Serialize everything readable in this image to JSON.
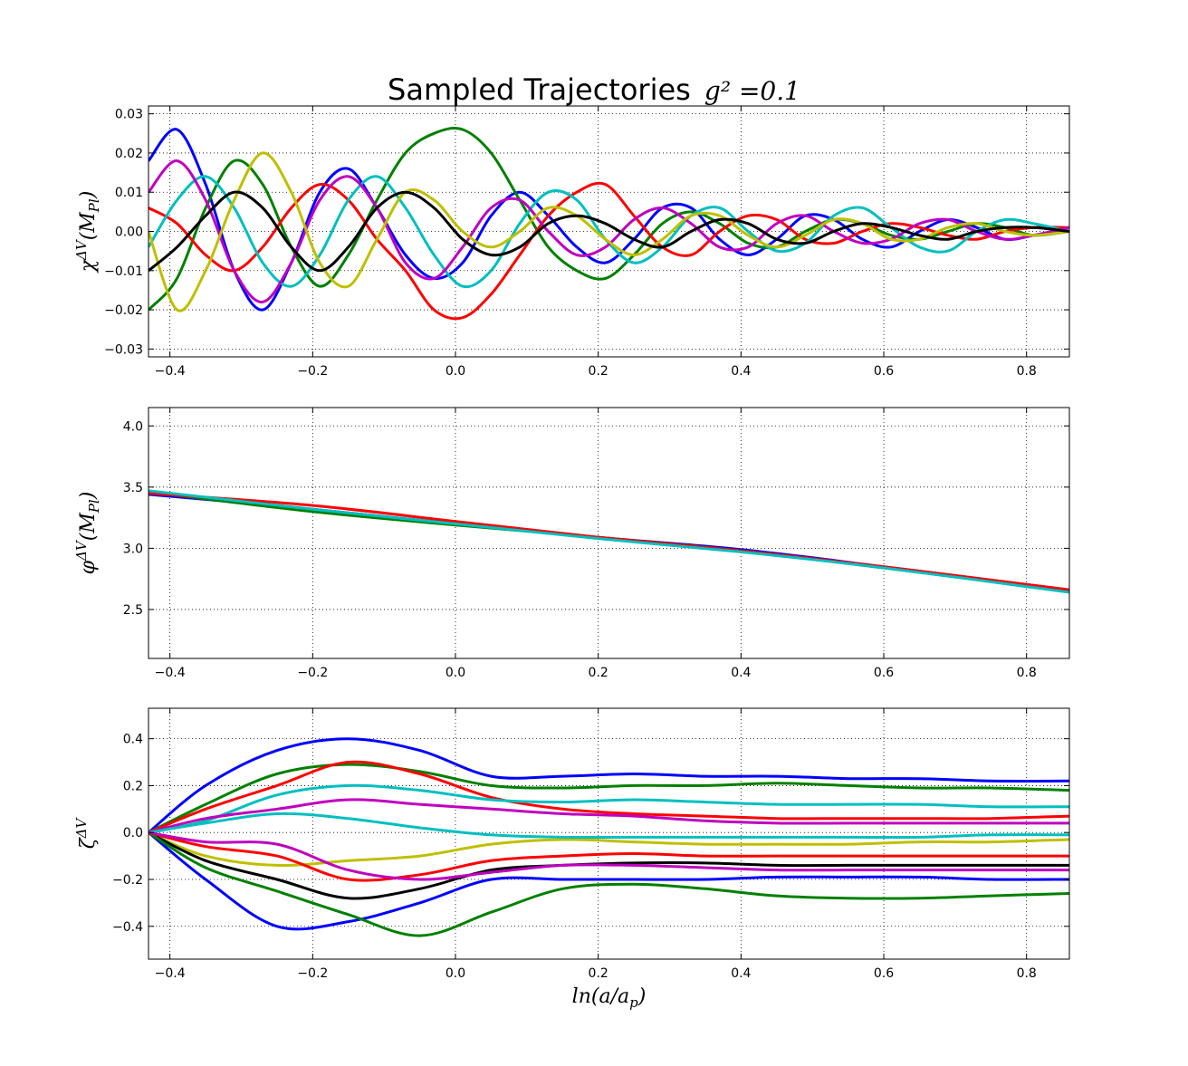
{
  "title": {
    "text": "Sampled Trajectories",
    "math": "g² =0.1"
  },
  "colors": [
    "#0000ff",
    "#008000",
    "#ff0000",
    "#00bfbf",
    "#bf00bf",
    "#bfbf00",
    "#000000"
  ],
  "chart_data": [
    {
      "type": "line",
      "name": "chi",
      "ylabel": "χ^ΔV(M_Pl)",
      "xlabel": "",
      "xlim": [
        -0.43,
        0.86
      ],
      "ylim": [
        -0.032,
        0.032
      ],
      "xticks": [
        -0.4,
        -0.2,
        0.0,
        0.2,
        0.4,
        0.6,
        0.8
      ],
      "xtick_labels": [
        "−0.4",
        "−0.2",
        "0.0",
        "0.2",
        "0.4",
        "0.6",
        "0.8"
      ],
      "yticks": [
        -0.03,
        -0.02,
        -0.01,
        0.0,
        0.01,
        0.02,
        0.03
      ],
      "ytick_labels": [
        "−0.03",
        "−0.02",
        "−0.01",
        "0.00",
        "0.01",
        "0.02",
        "0.03"
      ],
      "grid": true,
      "x": [
        -0.43,
        -0.39,
        -0.35,
        -0.31,
        -0.27,
        -0.23,
        -0.19,
        -0.15,
        -0.11,
        -0.07,
        -0.03,
        0.01,
        0.05,
        0.09,
        0.13,
        0.17,
        0.21,
        0.25,
        0.29,
        0.33,
        0.37,
        0.41,
        0.45,
        0.49,
        0.53,
        0.57,
        0.61,
        0.65,
        0.69,
        0.73,
        0.77,
        0.81,
        0.86
      ],
      "series": [
        {
          "values": [
            0.018,
            0.026,
            0.012,
            -0.01,
            -0.02,
            -0.008,
            0.01,
            0.016,
            0.006,
            -0.006,
            -0.012,
            -0.008,
            0.004,
            0.01,
            0.004,
            -0.004,
            -0.008,
            -0.002,
            0.006,
            0.006,
            -0.002,
            -0.006,
            -0.002,
            0.004,
            0.003,
            -0.002,
            -0.004,
            0.0,
            0.003,
            0.001,
            -0.002,
            -0.001,
            0.001
          ]
        },
        {
          "values": [
            -0.02,
            -0.012,
            0.006,
            0.018,
            0.012,
            -0.004,
            -0.014,
            -0.006,
            0.008,
            0.02,
            0.025,
            0.026,
            0.02,
            0.008,
            -0.004,
            -0.01,
            -0.012,
            -0.006,
            0.002,
            0.005,
            0.002,
            -0.003,
            -0.004,
            0.0,
            0.003,
            0.002,
            -0.001,
            -0.002,
            0.0,
            0.002,
            0.001,
            -0.001,
            0.0
          ]
        },
        {
          "values": [
            0.006,
            0.002,
            -0.006,
            -0.01,
            -0.004,
            0.006,
            0.012,
            0.008,
            -0.002,
            -0.01,
            -0.02,
            -0.022,
            -0.016,
            -0.006,
            0.004,
            0.01,
            0.012,
            0.004,
            -0.004,
            -0.006,
            0.0,
            0.004,
            0.003,
            -0.002,
            -0.003,
            0.0,
            0.002,
            0.001,
            -0.001,
            -0.002,
            0.0,
            0.001,
            0.001
          ]
        },
        {
          "values": [
            -0.004,
            0.008,
            0.014,
            0.006,
            -0.008,
            -0.014,
            -0.006,
            0.008,
            0.014,
            0.006,
            -0.006,
            -0.014,
            -0.01,
            0.002,
            0.01,
            0.008,
            -0.002,
            -0.008,
            -0.004,
            0.004,
            0.006,
            0.0,
            -0.005,
            -0.003,
            0.004,
            0.006,
            0.001,
            -0.004,
            -0.005,
            0.0,
            0.003,
            0.002,
            0.0
          ]
        },
        {
          "values": [
            0.01,
            0.018,
            0.008,
            -0.01,
            -0.018,
            -0.008,
            0.008,
            0.014,
            0.006,
            -0.008,
            -0.012,
            -0.004,
            0.006,
            0.008,
            0.0,
            -0.006,
            -0.004,
            0.003,
            0.006,
            0.002,
            -0.004,
            -0.004,
            0.002,
            0.004,
            0.0,
            -0.003,
            -0.002,
            0.002,
            0.003,
            0.0,
            -0.002,
            -0.001,
            0.001
          ]
        },
        {
          "values": [
            0.0,
            -0.02,
            -0.01,
            0.008,
            0.02,
            0.01,
            -0.008,
            -0.014,
            -0.002,
            0.01,
            0.008,
            0.0,
            -0.004,
            0.0,
            0.006,
            0.004,
            -0.002,
            -0.006,
            -0.002,
            0.004,
            0.004,
            -0.001,
            -0.004,
            -0.001,
            0.003,
            0.002,
            -0.002,
            -0.002,
            0.001,
            0.002,
            0.0,
            -0.001,
            0.0
          ]
        },
        {
          "values": [
            -0.01,
            -0.004,
            0.004,
            0.01,
            0.006,
            -0.004,
            -0.01,
            -0.004,
            0.006,
            0.01,
            0.006,
            -0.002,
            -0.006,
            -0.004,
            0.002,
            0.004,
            0.002,
            -0.002,
            -0.004,
            0.0,
            0.003,
            0.002,
            -0.002,
            -0.003,
            0.0,
            0.002,
            0.001,
            -0.001,
            -0.002,
            0.0,
            0.001,
            0.001,
            0.0
          ]
        }
      ]
    },
    {
      "type": "line",
      "name": "phi",
      "ylabel": "φ^ΔV(M_Pl)",
      "xlabel": "",
      "xlim": [
        -0.43,
        0.86
      ],
      "ylim": [
        2.1,
        4.15
      ],
      "xticks": [
        -0.4,
        -0.2,
        0.0,
        0.2,
        0.4,
        0.6,
        0.8
      ],
      "xtick_labels": [
        "−0.4",
        "−0.2",
        "0.0",
        "0.2",
        "0.4",
        "0.6",
        "0.8"
      ],
      "yticks": [
        2.5,
        3.0,
        3.5,
        4.0
      ],
      "ytick_labels": [
        "2.5",
        "3.0",
        "3.5",
        "4.0"
      ],
      "grid": true,
      "x": [
        -0.43,
        -0.2,
        0.0,
        0.2,
        0.4,
        0.6,
        0.86
      ],
      "series": [
        {
          "values": [
            3.44,
            3.32,
            3.2,
            3.09,
            2.99,
            2.85,
            2.66
          ]
        },
        {
          "values": [
            3.46,
            3.3,
            3.19,
            3.09,
            2.98,
            2.84,
            2.65
          ]
        },
        {
          "values": [
            3.45,
            3.35,
            3.22,
            3.09,
            2.98,
            2.85,
            2.66
          ]
        },
        {
          "values": [
            3.47,
            3.32,
            3.2,
            3.08,
            2.97,
            2.84,
            2.64
          ]
        }
      ]
    },
    {
      "type": "line",
      "name": "zeta",
      "ylabel": "ζ^ΔV",
      "xlabel": "ln(a/a_p)",
      "xlim": [
        -0.43,
        0.86
      ],
      "ylim": [
        -0.54,
        0.53
      ],
      "xticks": [
        -0.4,
        -0.2,
        0.0,
        0.2,
        0.4,
        0.6,
        0.8
      ],
      "xtick_labels": [
        "−0.4",
        "−0.2",
        "0.0",
        "0.2",
        "0.4",
        "0.6",
        "0.8"
      ],
      "yticks": [
        -0.4,
        -0.2,
        0.0,
        0.2,
        0.4
      ],
      "ytick_labels": [
        "−0.4",
        "−0.2",
        "0.0",
        "0.2",
        "0.4"
      ],
      "grid": true,
      "x": [
        -0.43,
        -0.35,
        -0.25,
        -0.15,
        -0.05,
        0.05,
        0.15,
        0.25,
        0.35,
        0.45,
        0.55,
        0.65,
        0.75,
        0.86
      ],
      "series": [
        {
          "values": [
            0.0,
            0.2,
            0.35,
            0.4,
            0.35,
            0.24,
            0.24,
            0.25,
            0.24,
            0.24,
            0.23,
            0.23,
            0.22,
            0.22
          ]
        },
        {
          "values": [
            0.0,
            0.12,
            0.25,
            0.29,
            0.26,
            0.2,
            0.19,
            0.2,
            0.2,
            0.21,
            0.2,
            0.19,
            0.19,
            0.18
          ]
        },
        {
          "values": [
            0.0,
            0.1,
            0.2,
            0.3,
            0.25,
            0.15,
            0.1,
            0.08,
            0.07,
            0.06,
            0.06,
            0.06,
            0.06,
            0.07
          ]
        },
        {
          "values": [
            0.0,
            0.05,
            0.16,
            0.2,
            0.18,
            0.14,
            0.13,
            0.14,
            0.13,
            0.12,
            0.12,
            0.12,
            0.11,
            0.11
          ]
        },
        {
          "values": [
            0.0,
            0.06,
            0.1,
            0.14,
            0.12,
            0.1,
            0.08,
            0.07,
            0.05,
            0.04,
            0.04,
            0.04,
            0.04,
            0.04
          ]
        },
        {
          "values": [
            0.0,
            -0.1,
            -0.14,
            -0.12,
            -0.1,
            -0.05,
            -0.03,
            -0.04,
            -0.05,
            -0.05,
            -0.05,
            -0.04,
            -0.04,
            -0.03
          ]
        },
        {
          "values": [
            0.0,
            -0.12,
            -0.2,
            -0.28,
            -0.24,
            -0.16,
            -0.14,
            -0.13,
            -0.13,
            -0.14,
            -0.14,
            -0.14,
            -0.14,
            -0.14
          ]
        },
        {
          "values": [
            0.0,
            -0.2,
            -0.4,
            -0.38,
            -0.3,
            -0.2,
            -0.2,
            -0.2,
            -0.2,
            -0.19,
            -0.19,
            -0.19,
            -0.2,
            -0.2
          ]
        },
        {
          "values": [
            0.0,
            -0.15,
            -0.25,
            -0.35,
            -0.44,
            -0.34,
            -0.24,
            -0.22,
            -0.24,
            -0.27,
            -0.28,
            -0.28,
            -0.27,
            -0.26
          ]
        },
        {
          "values": [
            0.0,
            -0.06,
            -0.1,
            -0.2,
            -0.18,
            -0.12,
            -0.1,
            -0.09,
            -0.1,
            -0.1,
            -0.1,
            -0.1,
            -0.1,
            -0.1
          ]
        },
        {
          "values": [
            0.0,
            0.04,
            0.08,
            0.06,
            0.02,
            -0.01,
            -0.02,
            -0.02,
            -0.02,
            -0.02,
            -0.02,
            -0.02,
            -0.01,
            -0.01
          ]
        },
        {
          "values": [
            0.0,
            -0.04,
            -0.05,
            -0.16,
            -0.2,
            -0.17,
            -0.14,
            -0.14,
            -0.15,
            -0.16,
            -0.16,
            -0.16,
            -0.16,
            -0.16
          ]
        }
      ]
    }
  ]
}
